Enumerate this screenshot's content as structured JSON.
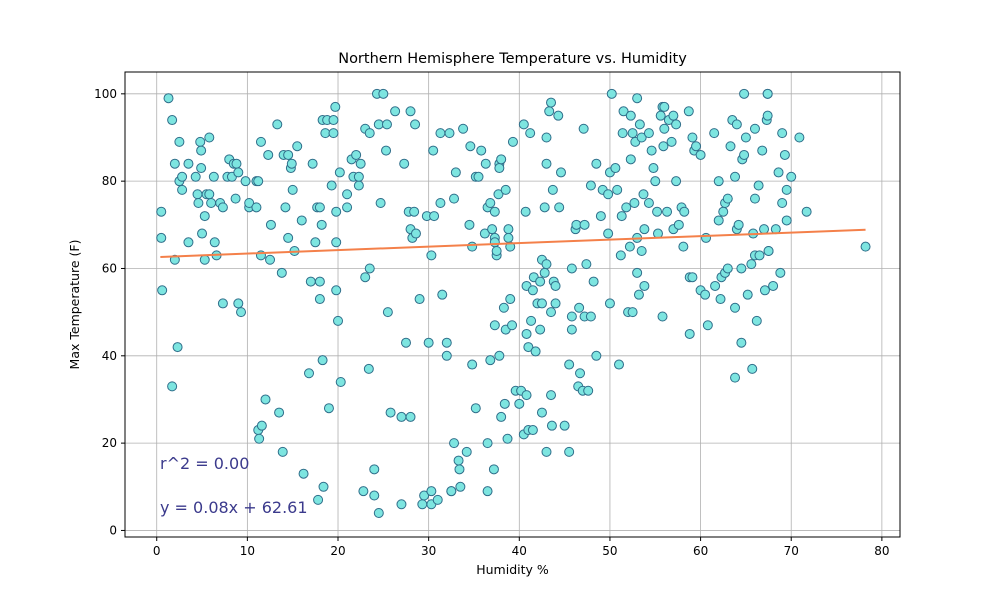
{
  "chart_data": {
    "type": "scatter",
    "title": "Northern Hemisphere Temperature vs. Humidity",
    "xlabel": "Humidity %",
    "ylabel": "Max Temperature (F)",
    "xlim": [
      -3.5,
      82
    ],
    "ylim": [
      -1.5,
      105
    ],
    "xticks": [
      0,
      10,
      20,
      30,
      40,
      50,
      60,
      70,
      80
    ],
    "yticks": [
      0,
      20,
      40,
      60,
      80,
      100
    ],
    "grid": true,
    "marker_color": "#7de5e0",
    "marker_edge_color": "#2f6e8a",
    "regression": {
      "slope": 0.08,
      "intercept": 62.61,
      "x_range": [
        0.4,
        78.2
      ],
      "color": "#f4804a"
    },
    "annotations": [
      "r^2 = 0.00",
      "y = 0.08x + 62.61"
    ],
    "annotation_color": "#3b3a8c",
    "points": [
      [
        1.3,
        99
      ],
      [
        1.7,
        94
      ],
      [
        0.5,
        73
      ],
      [
        0.5,
        67
      ],
      [
        0.6,
        55
      ],
      [
        1.7,
        33
      ],
      [
        2.0,
        84
      ],
      [
        2.0,
        62
      ],
      [
        2.3,
        42
      ],
      [
        2.5,
        89
      ],
      [
        2.5,
        80
      ],
      [
        2.8,
        81
      ],
      [
        2.8,
        78
      ],
      [
        3.5,
        84
      ],
      [
        3.5,
        66
      ],
      [
        4.3,
        81
      ],
      [
        4.5,
        77
      ],
      [
        4.6,
        75
      ],
      [
        4.8,
        89
      ],
      [
        4.9,
        87
      ],
      [
        4.9,
        83
      ],
      [
        5.0,
        68
      ],
      [
        5.3,
        72
      ],
      [
        5.3,
        62
      ],
      [
        5.5,
        77
      ],
      [
        5.8,
        77
      ],
      [
        5.8,
        90
      ],
      [
        6.0,
        75
      ],
      [
        6.3,
        81
      ],
      [
        6.4,
        66
      ],
      [
        6.6,
        63
      ],
      [
        7.0,
        75
      ],
      [
        7.3,
        74
      ],
      [
        7.3,
        52
      ],
      [
        7.8,
        81
      ],
      [
        8.0,
        85
      ],
      [
        8.3,
        81
      ],
      [
        8.5,
        84
      ],
      [
        8.7,
        76
      ],
      [
        8.8,
        84
      ],
      [
        9.0,
        82
      ],
      [
        9.0,
        52
      ],
      [
        9.3,
        50
      ],
      [
        9.8,
        80
      ],
      [
        10.2,
        74
      ],
      [
        10.2,
        75
      ],
      [
        11.0,
        80
      ],
      [
        11.2,
        80
      ],
      [
        11.0,
        74
      ],
      [
        11.5,
        89
      ],
      [
        11.5,
        63
      ],
      [
        11.2,
        23
      ],
      [
        11.3,
        21
      ],
      [
        11.6,
        24
      ],
      [
        12.0,
        30
      ],
      [
        12.3,
        86
      ],
      [
        12.5,
        62
      ],
      [
        12.6,
        70
      ],
      [
        13.3,
        93
      ],
      [
        13.5,
        27
      ],
      [
        13.8,
        59
      ],
      [
        13.9,
        18
      ],
      [
        14.0,
        86
      ],
      [
        14.2,
        74
      ],
      [
        14.5,
        86
      ],
      [
        14.5,
        67
      ],
      [
        14.8,
        83
      ],
      [
        14.9,
        84
      ],
      [
        15.0,
        78
      ],
      [
        15.2,
        64
      ],
      [
        15.5,
        88
      ],
      [
        16.0,
        71
      ],
      [
        16.2,
        13
      ],
      [
        16.8,
        36
      ],
      [
        17.0,
        57
      ],
      [
        17.2,
        84
      ],
      [
        17.5,
        66
      ],
      [
        17.7,
        74
      ],
      [
        17.8,
        7
      ],
      [
        18.0,
        74
      ],
      [
        18.0,
        53
      ],
      [
        18.0,
        57
      ],
      [
        18.3,
        39
      ],
      [
        18.4,
        10
      ],
      [
        18.2,
        70
      ],
      [
        18.3,
        94
      ],
      [
        18.6,
        91
      ],
      [
        18.8,
        94
      ],
      [
        19.0,
        28
      ],
      [
        19.3,
        79
      ],
      [
        19.5,
        94
      ],
      [
        19.7,
        97
      ],
      [
        19.5,
        91
      ],
      [
        19.8,
        73
      ],
      [
        19.8,
        66
      ],
      [
        19.8,
        55
      ],
      [
        20.0,
        48
      ],
      [
        20.2,
        82
      ],
      [
        20.3,
        34
      ],
      [
        21.0,
        77
      ],
      [
        21.0,
        74
      ],
      [
        21.5,
        85
      ],
      [
        21.7,
        81
      ],
      [
        22.0,
        86
      ],
      [
        22.3,
        79
      ],
      [
        22.3,
        81
      ],
      [
        22.5,
        84
      ],
      [
        22.8,
        9
      ],
      [
        23.0,
        92
      ],
      [
        23.0,
        58
      ],
      [
        23.4,
        37
      ],
      [
        23.5,
        60
      ],
      [
        23.5,
        91
      ],
      [
        24.0,
        8
      ],
      [
        24.0,
        14
      ],
      [
        24.3,
        100
      ],
      [
        24.5,
        93
      ],
      [
        24.5,
        4
      ],
      [
        24.7,
        75
      ],
      [
        25.0,
        100
      ],
      [
        25.3,
        87
      ],
      [
        25.4,
        93
      ],
      [
        25.5,
        50
      ],
      [
        25.8,
        27
      ],
      [
        26.3,
        96
      ],
      [
        27.0,
        6
      ],
      [
        27.0,
        26
      ],
      [
        27.3,
        84
      ],
      [
        27.5,
        43
      ],
      [
        27.8,
        73
      ],
      [
        28.0,
        96
      ],
      [
        28.0,
        69
      ],
      [
        28.0,
        26
      ],
      [
        28.2,
        67
      ],
      [
        28.4,
        73
      ],
      [
        28.5,
        93
      ],
      [
        28.6,
        68
      ],
      [
        29.0,
        53
      ],
      [
        29.3,
        6
      ],
      [
        29.5,
        8
      ],
      [
        29.8,
        72
      ],
      [
        30.0,
        43
      ],
      [
        30.3,
        9
      ],
      [
        30.3,
        63
      ],
      [
        30.3,
        6
      ],
      [
        30.5,
        87
      ],
      [
        30.6,
        72
      ],
      [
        31.0,
        7
      ],
      [
        31.3,
        91
      ],
      [
        31.3,
        75
      ],
      [
        31.5,
        54
      ],
      [
        32.0,
        43
      ],
      [
        32.0,
        40
      ],
      [
        32.3,
        91
      ],
      [
        32.5,
        9
      ],
      [
        32.5,
        9
      ],
      [
        32.8,
        76
      ],
      [
        32.8,
        20
      ],
      [
        33.0,
        82
      ],
      [
        33.3,
        16
      ],
      [
        33.4,
        14
      ],
      [
        33.5,
        10
      ],
      [
        33.8,
        92
      ],
      [
        34.2,
        18
      ],
      [
        34.5,
        70
      ],
      [
        34.6,
        88
      ],
      [
        34.8,
        65
      ],
      [
        34.8,
        38
      ],
      [
        35.2,
        81
      ],
      [
        35.2,
        28
      ],
      [
        35.5,
        81
      ],
      [
        35.8,
        87
      ],
      [
        36.2,
        68
      ],
      [
        36.3,
        84
      ],
      [
        36.5,
        9
      ],
      [
        36.5,
        74
      ],
      [
        36.5,
        20
      ],
      [
        36.8,
        39
      ],
      [
        36.8,
        75
      ],
      [
        37.0,
        69
      ],
      [
        37.2,
        14
      ],
      [
        37.3,
        67
      ],
      [
        37.3,
        47
      ],
      [
        37.3,
        66
      ],
      [
        37.3,
        73
      ],
      [
        37.5,
        63
      ],
      [
        37.5,
        64
      ],
      [
        37.7,
        77
      ],
      [
        37.8,
        40
      ],
      [
        37.8,
        84
      ],
      [
        37.8,
        83
      ],
      [
        38.0,
        85
      ],
      [
        38.0,
        26
      ],
      [
        38.3,
        51
      ],
      [
        38.4,
        29
      ],
      [
        38.5,
        46
      ],
      [
        38.5,
        78
      ],
      [
        38.7,
        21
      ],
      [
        38.8,
        69
      ],
      [
        38.8,
        67
      ],
      [
        39.0,
        53
      ],
      [
        39.0,
        65
      ],
      [
        39.2,
        47
      ],
      [
        39.3,
        89
      ],
      [
        39.6,
        32
      ],
      [
        40.0,
        29
      ],
      [
        40.2,
        32
      ],
      [
        40.5,
        22
      ],
      [
        40.5,
        93
      ],
      [
        40.7,
        73
      ],
      [
        40.8,
        56
      ],
      [
        40.8,
        45
      ],
      [
        40.8,
        31
      ],
      [
        41.0,
        23
      ],
      [
        41.0,
        42
      ],
      [
        41.2,
        91
      ],
      [
        41.3,
        48
      ],
      [
        41.5,
        23
      ],
      [
        41.5,
        55
      ],
      [
        41.6,
        58
      ],
      [
        41.8,
        41
      ],
      [
        42.0,
        52
      ],
      [
        42.3,
        46
      ],
      [
        42.3,
        57
      ],
      [
        42.5,
        62
      ],
      [
        42.5,
        52
      ],
      [
        42.5,
        27
      ],
      [
        42.8,
        59
      ],
      [
        42.8,
        74
      ],
      [
        43.0,
        18
      ],
      [
        43.0,
        61
      ],
      [
        43.0,
        84
      ],
      [
        43.0,
        90
      ],
      [
        43.3,
        96
      ],
      [
        43.5,
        98
      ],
      [
        43.5,
        50
      ],
      [
        43.5,
        31
      ],
      [
        43.6,
        24
      ],
      [
        43.7,
        78
      ],
      [
        43.8,
        57
      ],
      [
        44.0,
        56
      ],
      [
        44.0,
        52
      ],
      [
        44.3,
        95
      ],
      [
        44.4,
        74
      ],
      [
        44.6,
        82
      ],
      [
        45.0,
        24
      ],
      [
        45.5,
        38
      ],
      [
        45.5,
        18
      ],
      [
        45.8,
        46
      ],
      [
        45.8,
        49
      ],
      [
        45.8,
        60
      ],
      [
        46.2,
        69
      ],
      [
        46.3,
        70
      ],
      [
        46.5,
        33
      ],
      [
        46.6,
        51
      ],
      [
        46.7,
        36
      ],
      [
        47.0,
        32
      ],
      [
        47.1,
        92
      ],
      [
        47.2,
        49
      ],
      [
        47.2,
        70
      ],
      [
        47.4,
        61
      ],
      [
        47.6,
        32
      ],
      [
        47.9,
        79
      ],
      [
        47.9,
        49
      ],
      [
        48.2,
        57
      ],
      [
        48.5,
        84
      ],
      [
        48.5,
        40
      ],
      [
        49.0,
        72
      ],
      [
        49.2,
        78
      ],
      [
        49.8,
        68
      ],
      [
        49.8,
        77
      ],
      [
        50.0,
        82
      ],
      [
        50.0,
        52
      ],
      [
        50.2,
        100
      ],
      [
        50.6,
        83
      ],
      [
        50.8,
        78
      ],
      [
        51.0,
        38
      ],
      [
        51.2,
        63
      ],
      [
        51.3,
        72
      ],
      [
        51.4,
        91
      ],
      [
        51.5,
        96
      ],
      [
        51.8,
        74
      ],
      [
        52.0,
        50
      ],
      [
        52.2,
        65
      ],
      [
        52.3,
        95
      ],
      [
        52.3,
        85
      ],
      [
        52.5,
        91
      ],
      [
        52.5,
        50
      ],
      [
        52.7,
        75
      ],
      [
        52.8,
        89
      ],
      [
        53.0,
        99
      ],
      [
        53.0,
        67
      ],
      [
        53.0,
        59
      ],
      [
        53.2,
        54
      ],
      [
        53.3,
        93
      ],
      [
        53.5,
        64
      ],
      [
        53.5,
        90
      ],
      [
        53.7,
        77
      ],
      [
        53.8,
        56
      ],
      [
        53.8,
        69
      ],
      [
        54.3,
        75
      ],
      [
        54.3,
        91
      ],
      [
        54.6,
        87
      ],
      [
        54.8,
        83
      ],
      [
        55.0,
        80
      ],
      [
        55.2,
        73
      ],
      [
        55.3,
        68
      ],
      [
        55.6,
        95
      ],
      [
        55.8,
        97
      ],
      [
        55.8,
        49
      ],
      [
        55.9,
        88
      ],
      [
        56.0,
        92
      ],
      [
        56.0,
        97
      ],
      [
        56.3,
        73
      ],
      [
        56.5,
        94
      ],
      [
        56.8,
        89
      ],
      [
        57.0,
        95
      ],
      [
        57.0,
        69
      ],
      [
        57.3,
        93
      ],
      [
        57.3,
        80
      ],
      [
        57.6,
        70
      ],
      [
        57.9,
        74
      ],
      [
        58.1,
        65
      ],
      [
        58.2,
        73
      ],
      [
        58.7,
        96
      ],
      [
        58.8,
        58
      ],
      [
        58.8,
        45
      ],
      [
        59.1,
        90
      ],
      [
        59.1,
        58
      ],
      [
        59.3,
        87
      ],
      [
        59.5,
        88
      ],
      [
        60.0,
        86
      ],
      [
        60.0,
        55
      ],
      [
        60.5,
        54
      ],
      [
        60.6,
        67
      ],
      [
        60.8,
        47
      ],
      [
        61.5,
        91
      ],
      [
        61.6,
        56
      ],
      [
        62.0,
        71
      ],
      [
        62.0,
        80
      ],
      [
        62.2,
        53
      ],
      [
        62.3,
        58
      ],
      [
        62.5,
        73
      ],
      [
        62.7,
        75
      ],
      [
        62.7,
        59
      ],
      [
        63.0,
        60
      ],
      [
        63.0,
        76
      ],
      [
        63.3,
        88
      ],
      [
        63.5,
        94
      ],
      [
        63.8,
        35
      ],
      [
        63.8,
        51
      ],
      [
        63.8,
        81
      ],
      [
        64.0,
        93
      ],
      [
        64.0,
        69
      ],
      [
        64.2,
        70
      ],
      [
        64.5,
        43
      ],
      [
        64.5,
        60
      ],
      [
        64.6,
        85
      ],
      [
        64.8,
        86
      ],
      [
        64.8,
        100
      ],
      [
        65.0,
        90
      ],
      [
        65.2,
        54
      ],
      [
        65.6,
        61
      ],
      [
        65.7,
        37
      ],
      [
        65.8,
        68
      ],
      [
        66.0,
        92
      ],
      [
        66.0,
        76
      ],
      [
        66.0,
        63
      ],
      [
        66.2,
        48
      ],
      [
        66.4,
        79
      ],
      [
        66.5,
        63
      ],
      [
        66.8,
        87
      ],
      [
        67.0,
        69
      ],
      [
        67.1,
        55
      ],
      [
        67.3,
        94
      ],
      [
        67.4,
        100
      ],
      [
        67.4,
        95
      ],
      [
        67.4,
        100
      ],
      [
        67.5,
        64
      ],
      [
        67.5,
        64
      ],
      [
        68.0,
        56
      ],
      [
        68.3,
        69
      ],
      [
        68.6,
        82
      ],
      [
        68.8,
        59
      ],
      [
        69.0,
        91
      ],
      [
        69.0,
        75
      ],
      [
        69.3,
        86
      ],
      [
        69.5,
        78
      ],
      [
        69.5,
        71
      ],
      [
        70.0,
        81
      ],
      [
        70.9,
        90
      ],
      [
        71.7,
        73
      ],
      [
        78.2,
        65
      ]
    ]
  }
}
